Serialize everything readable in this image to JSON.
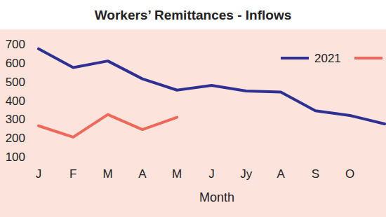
{
  "chart_data": {
    "type": "line",
    "title": "Workers’ Remittances - Inflows",
    "x_label": "Month",
    "categories": [
      "J",
      "F",
      "M",
      "A",
      "M",
      "J",
      "Jy",
      "A",
      "S",
      "O",
      null
    ],
    "series": [
      {
        "name": "2021",
        "color": "#2e3192",
        "values": [
          675,
          575,
          610,
          515,
          455,
          480,
          450,
          445,
          345,
          320,
          275
        ]
      },
      {
        "color": "#f0685a",
        "values": [
          265,
          205,
          325,
          245,
          310,
          null,
          null,
          null,
          null,
          null,
          null
        ]
      }
    ],
    "ylim": [
      100,
      700
    ],
    "yticks": [
      100,
      200,
      300,
      400,
      500,
      600,
      700
    ],
    "grid": false,
    "legend": "top-right"
  }
}
